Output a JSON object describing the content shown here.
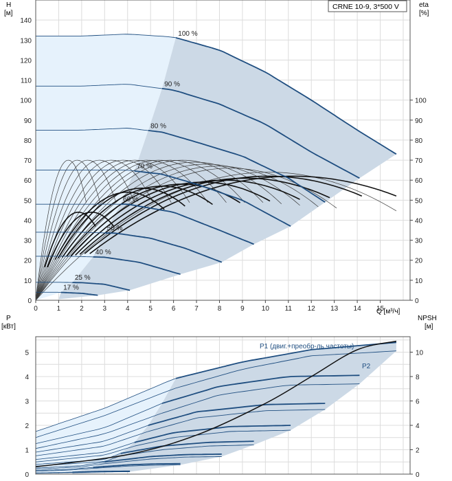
{
  "colors": {
    "region_light": "#e6f2fc",
    "region_dark": "#ccd9e6",
    "curve_blue": "#1f4e80",
    "curve_thin": "#3a3a3a",
    "curve_black": "#111111",
    "grid": "#dcdcdc"
  },
  "chart_data": [
    {
      "type": "line",
      "legend_box": "CRNE 10-9, 3*500 V",
      "ylabel_left": "H",
      "ylabel_left_unit": "[м]",
      "ylabel_right": "eta",
      "ylabel_right_unit": "[%]",
      "xlabel": "Q [м³/ч]",
      "xlim": [
        0,
        16.3
      ],
      "ylim": [
        0,
        150
      ],
      "x_ticks": [
        "0",
        "1",
        "2",
        "3",
        "4",
        "5",
        "6",
        "7",
        "8",
        "9",
        "10",
        "11",
        "12",
        "13",
        "14",
        "15"
      ],
      "y_ticks_left": [
        "0",
        "10",
        "20",
        "30",
        "40",
        "50",
        "60",
        "70",
        "80",
        "90",
        "100",
        "110",
        "120",
        "130",
        "140"
      ],
      "y_ticks_right": [
        "0",
        "10",
        "20",
        "30",
        "40",
        "50",
        "60",
        "70",
        "80",
        "90",
        "100"
      ],
      "grid": true,
      "speed_curves": [
        {
          "label": "100 %",
          "points": [
            [
              0,
              132
            ],
            [
              2,
              132
            ],
            [
              4,
              133
            ],
            [
              6,
              131.5
            ],
            [
              8,
              125
            ],
            [
              10,
              114
            ],
            [
              12,
              100
            ],
            [
              14,
              85
            ],
            [
              15.7,
              73
            ]
          ],
          "split_x": 6.1
        },
        {
          "label": "90 %",
          "points": [
            [
              0,
              107
            ],
            [
              2,
              107
            ],
            [
              4,
              108
            ],
            [
              6,
              105
            ],
            [
              8,
              98
            ],
            [
              10,
              88
            ],
            [
              12,
              74
            ],
            [
              14.1,
              61
            ]
          ],
          "split_x": 5.5
        },
        {
          "label": "80 %",
          "points": [
            [
              0,
              85
            ],
            [
              2,
              85
            ],
            [
              4,
              86
            ],
            [
              5.5,
              84
            ],
            [
              7,
              79
            ],
            [
              9,
              72
            ],
            [
              11,
              61
            ],
            [
              12.6,
              49
            ]
          ],
          "split_x": 4.9
        },
        {
          "label": "70 %",
          "points": [
            [
              0,
              65
            ],
            [
              2,
              65
            ],
            [
              4,
              65
            ],
            [
              5.5,
              63
            ],
            [
              7,
              58
            ],
            [
              9,
              50
            ],
            [
              11.1,
              37
            ]
          ],
          "split_x": 4.3
        },
        {
          "label": "60 %",
          "points": [
            [
              0,
              48
            ],
            [
              2,
              48
            ],
            [
              4,
              48
            ],
            [
              6,
              44
            ],
            [
              8,
              35
            ],
            [
              9.5,
              28
            ]
          ],
          "split_x": 3.7
        },
        {
          "label": "50 %",
          "points": [
            [
              0,
              34
            ],
            [
              2,
              34
            ],
            [
              3.5,
              33.5
            ],
            [
              5,
              31
            ],
            [
              6.5,
              26
            ],
            [
              8.1,
              19
            ]
          ],
          "split_x": 3.0
        },
        {
          "label": "40 %",
          "points": [
            [
              0,
              22
            ],
            [
              1.5,
              22
            ],
            [
              3,
              21.5
            ],
            [
              4.5,
              19
            ],
            [
              6.3,
              13
            ]
          ],
          "split_x": 2.5
        },
        {
          "label": "25 %",
          "points": [
            [
              0,
              9
            ],
            [
              1,
              9
            ],
            [
              2,
              8.8
            ],
            [
              3,
              8
            ],
            [
              4.1,
              5
            ]
          ],
          "split_x": 1.6
        },
        {
          "label": "17 %",
          "points": [
            [
              0,
              4
            ],
            [
              1,
              4
            ],
            [
              2,
              3.5
            ],
            [
              2.7,
              2.5
            ]
          ],
          "split_x": 1.1
        }
      ],
      "eta_curves": [
        {
          "scale": 2.2,
          "peak": 70
        },
        {
          "scale": 2.8,
          "peak": 70
        },
        {
          "scale": 3.5,
          "peak": 70
        },
        {
          "scale": 4.3,
          "peak": 70
        },
        {
          "scale": 5.1,
          "peak": 70
        },
        {
          "scale": 5.9,
          "peak": 70
        },
        {
          "scale": 6.7,
          "peak": 70
        },
        {
          "scale": 7.5,
          "peak": 70
        },
        {
          "scale": 8.3,
          "peak": 70
        },
        {
          "scale": 9.1,
          "peak": 70
        },
        {
          "scale": 9.9,
          "peak": 70
        },
        {
          "scale": 10.7,
          "peak": 69
        },
        {
          "scale": 11.5,
          "peak": 68
        },
        {
          "scale": 12.3,
          "peak": 67
        },
        {
          "scale": 13.1,
          "peak": 66
        },
        {
          "scale": 15.7,
          "peak": 64
        }
      ],
      "eta_black_curves": [
        {
          "scale": 2.6,
          "peak": 44
        },
        {
          "scale": 3.4,
          "peak": 44
        },
        {
          "scale": 5.6,
          "peak": 54
        },
        {
          "scale": 6.5,
          "peak": 56
        },
        {
          "scale": 7.7,
          "peak": 57
        },
        {
          "scale": 8.9,
          "peak": 58
        },
        {
          "scale": 10.2,
          "peak": 59
        },
        {
          "scale": 11.5,
          "peak": 60
        },
        {
          "scale": 12.8,
          "peak": 61
        },
        {
          "scale": 14.2,
          "peak": 62
        },
        {
          "scale": 15.7,
          "peak": 62
        }
      ]
    },
    {
      "type": "line",
      "ylabel_left": "P",
      "ylabel_left_unit": "[кВт]",
      "ylabel_right": "NPSH",
      "ylabel_right_unit": "[м]",
      "xlim": [
        0,
        16.3
      ],
      "ylim": [
        0,
        6
      ],
      "npsh_lim": [
        0,
        12
      ],
      "y_ticks_left": [
        "0",
        "1",
        "2",
        "3",
        "4",
        "5"
      ],
      "y_ticks_right": [
        "0",
        "2",
        "4",
        "6",
        "8",
        "10"
      ],
      "grid": true,
      "series_label_p1": "P1 (двиг.+преобр-ль частоты)",
      "series_label_p2": "P2",
      "power_curves": [
        {
          "p1": [
            [
              0,
              1.75
            ],
            [
              3,
              2.7
            ],
            [
              6,
              3.9
            ],
            [
              9,
              4.6
            ],
            [
              12,
              5.1
            ],
            [
              15.7,
              5.4
            ]
          ],
          "p2": [
            [
              0,
              1.5
            ],
            [
              3,
              2.4
            ],
            [
              6,
              3.5
            ],
            [
              9,
              4.3
            ],
            [
              12,
              4.85
            ],
            [
              15.7,
              5.05
            ]
          ],
          "split_x": 6.1
        },
        {
          "p1": [
            [
              0,
              1.25
            ],
            [
              3,
              1.9
            ],
            [
              5.5,
              2.9
            ],
            [
              8,
              3.6
            ],
            [
              11,
              4.0
            ],
            [
              14.1,
              4.05
            ]
          ],
          "p2": [
            [
              0,
              1.05
            ],
            [
              3,
              1.65
            ],
            [
              5.5,
              2.5
            ],
            [
              8,
              3.25
            ],
            [
              11,
              3.65
            ],
            [
              14.1,
              3.7
            ]
          ],
          "split_x": 5.5
        },
        {
          "p1": [
            [
              0,
              0.9
            ],
            [
              3,
              1.35
            ],
            [
              4.9,
              2.0
            ],
            [
              7,
              2.55
            ],
            [
              10,
              2.85
            ],
            [
              12.6,
              2.9
            ]
          ],
          "p2": [
            [
              0,
              0.75
            ],
            [
              3,
              1.15
            ],
            [
              4.9,
              1.75
            ],
            [
              7,
              2.3
            ],
            [
              10,
              2.6
            ],
            [
              12.6,
              2.65
            ]
          ],
          "split_x": 4.9
        },
        {
          "p1": [
            [
              0,
              0.6
            ],
            [
              3,
              0.9
            ],
            [
              4.3,
              1.3
            ],
            [
              6,
              1.7
            ],
            [
              8.5,
              1.95
            ],
            [
              11.1,
              2.0
            ]
          ],
          "p2": [
            [
              0,
              0.5
            ],
            [
              3,
              0.78
            ],
            [
              4.3,
              1.15
            ],
            [
              6,
              1.5
            ],
            [
              8.5,
              1.75
            ],
            [
              11.1,
              1.8
            ]
          ],
          "split_x": 4.3
        },
        {
          "p1": [
            [
              0,
              0.4
            ],
            [
              3,
              0.6
            ],
            [
              3.7,
              0.85
            ],
            [
              5.5,
              1.15
            ],
            [
              7.5,
              1.3
            ],
            [
              9.5,
              1.35
            ]
          ],
          "p2": [
            [
              0,
              0.33
            ],
            [
              3,
              0.52
            ],
            [
              3.7,
              0.75
            ],
            [
              5.5,
              1.0
            ],
            [
              7.5,
              1.15
            ],
            [
              9.5,
              1.2
            ]
          ],
          "split_x": 3.7
        },
        {
          "p1": [
            [
              0,
              0.25
            ],
            [
              2,
              0.35
            ],
            [
              3.0,
              0.5
            ],
            [
              5,
              0.72
            ],
            [
              6.5,
              0.8
            ],
            [
              8.1,
              0.82
            ]
          ],
          "p2": [
            [
              0,
              0.2
            ],
            [
              2,
              0.3
            ],
            [
              3.0,
              0.43
            ],
            [
              5,
              0.62
            ],
            [
              6.5,
              0.7
            ],
            [
              8.1,
              0.72
            ]
          ],
          "split_x": 3.0
        },
        {
          "p1": [
            [
              0,
              0.15
            ],
            [
              1.5,
              0.2
            ],
            [
              2.5,
              0.28
            ],
            [
              4,
              0.38
            ],
            [
              5.2,
              0.42
            ],
            [
              6.3,
              0.43
            ]
          ],
          "p2": [
            [
              0,
              0.12
            ],
            [
              1.5,
              0.17
            ],
            [
              2.5,
              0.24
            ],
            [
              4,
              0.33
            ],
            [
              5.2,
              0.37
            ],
            [
              6.3,
              0.38
            ]
          ],
          "split_x": 2.5
        },
        {
          "p1": [
            [
              0,
              0.05
            ],
            [
              1.6,
              0.08
            ],
            [
              2.8,
              0.11
            ],
            [
              4.1,
              0.12
            ]
          ],
          "p2": [
            [
              0,
              0.04
            ],
            [
              1.6,
              0.06
            ],
            [
              2.8,
              0.09
            ],
            [
              4.1,
              0.1
            ]
          ],
          "split_x": 1.6
        }
      ],
      "npsh_curve": [
        [
          0,
          0.3
        ],
        [
          4,
          0.8
        ],
        [
          7,
          1.6
        ],
        [
          10,
          2.9
        ],
        [
          12,
          4.0
        ],
        [
          14,
          5.1
        ],
        [
          15.7,
          5.45
        ]
      ]
    }
  ]
}
